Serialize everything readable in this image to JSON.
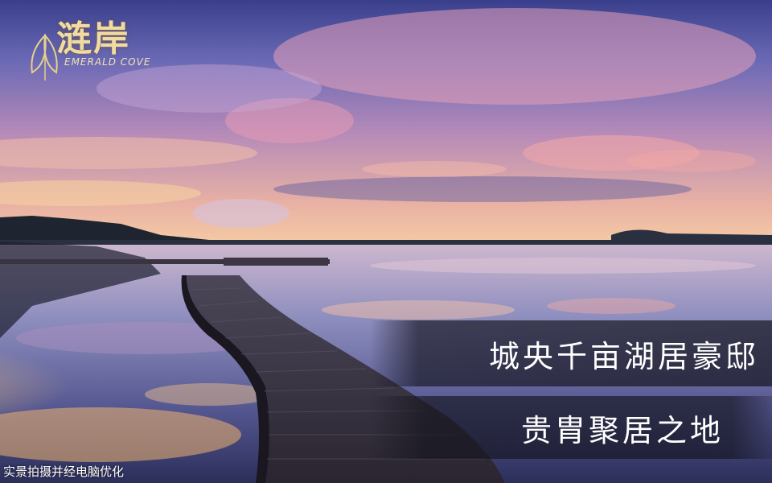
{
  "logo": {
    "brand_cn": "涟岸",
    "brand_en": "EMERALD COVE"
  },
  "captions": {
    "line1": "城央千亩湖居豪邸",
    "line2": "贵胄聚居之地"
  },
  "footnote": "实景拍摄并经电脑优化"
}
